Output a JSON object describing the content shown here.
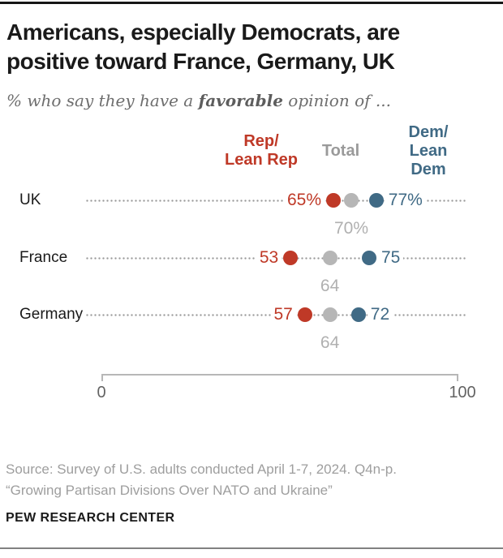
{
  "page": {
    "title_line1": "Americans, especially Democrats, are",
    "title_line2": "positive toward France, Germany, UK",
    "subtitle": {
      "prefix": "% who say they have a ",
      "emphasis": "favorable",
      "suffix": " opinion of ..."
    }
  },
  "legend": {
    "rep": {
      "line1": "Rep/",
      "line2": "Lean Rep"
    },
    "total": {
      "label": "Total"
    },
    "dem": {
      "line1": "Dem/",
      "line2": "Lean Dem"
    }
  },
  "colors": {
    "rep": "#bf3927",
    "dem": "#406a85",
    "total_dot": "#b6b6b6",
    "total_text": "#b0b0b0",
    "legend_total_text": "#9a9a9a",
    "leader": "#9a9a9a",
    "axis": "#b7b7b7"
  },
  "chart_data": {
    "type": "scatter",
    "subtype": "dot-plot",
    "title": "Americans, especially Democrats, are positive toward France, Germany, UK",
    "subtitle": "% who say they have a favorable opinion of ...",
    "categories": [
      "UK",
      "France",
      "Germany"
    ],
    "series": [
      {
        "name": "Rep/Lean Rep",
        "values": [
          65,
          53,
          57
        ],
        "labels": [
          "65%",
          "53",
          "57"
        ],
        "color": "#bf3927"
      },
      {
        "name": "Total",
        "values": [
          70,
          64,
          64
        ],
        "labels": [
          "70%",
          "64",
          "64"
        ],
        "color": "#b6b6b6"
      },
      {
        "name": "Dem/Lean Dem",
        "values": [
          77,
          75,
          72
        ],
        "labels": [
          "77%",
          "75",
          "72"
        ],
        "color": "#406a85"
      }
    ],
    "xlim": [
      0,
      100
    ],
    "axis_tick_labels": [
      "0",
      "100"
    ],
    "grid": false,
    "legend_position": "top"
  },
  "footer": {
    "source_line1": "Source: Survey of U.S. adults conducted April 1-7, 2024. Q4n-p.",
    "source_line2": "“Growing Partisan Divisions Over NATO and Ukraine”",
    "brand": "PEW RESEARCH CENTER"
  }
}
